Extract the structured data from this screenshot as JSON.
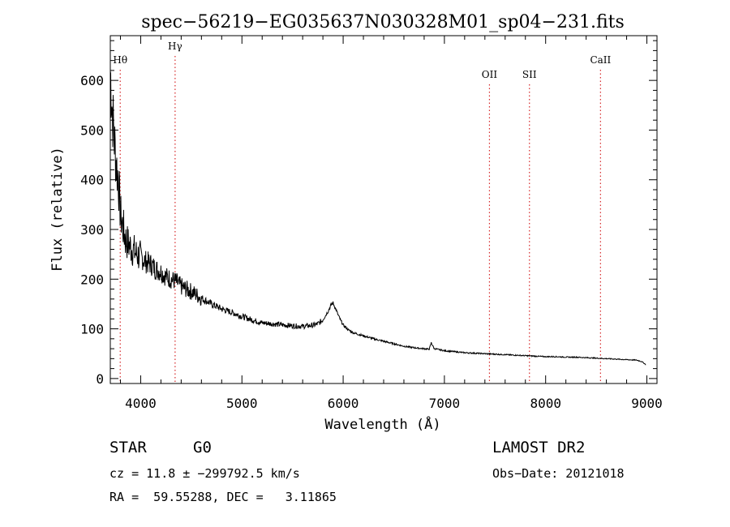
{
  "chart_data": {
    "type": "line",
    "title": "spec−56219−EG035637N030328M01_sp04−231.fits",
    "xlabel": "Wavelength (Å)",
    "ylabel": "Flux (relative)",
    "xlim": [
      3700,
      9100
    ],
    "ylim": [
      -10,
      690
    ],
    "xticks": [
      4000,
      5000,
      6000,
      7000,
      8000,
      9000
    ],
    "yticks": [
      0,
      100,
      200,
      300,
      400,
      500,
      600
    ],
    "grid": false,
    "line_color": "#000000",
    "marker_color": "#d62728",
    "series": [
      {
        "x": [
          3700,
          3720,
          3740,
          3760,
          3780,
          3800,
          3820,
          3850,
          3880,
          3920,
          3960,
          4000,
          4050,
          4100,
          4150,
          4200,
          4250,
          4300,
          4350,
          4400,
          4450,
          4500,
          4600,
          4700,
          4800,
          4900,
          5000,
          5100,
          5200,
          5300,
          5400,
          5500,
          5600,
          5700,
          5750,
          5800,
          5850,
          5880,
          5900,
          5920,
          5950,
          5980,
          6000,
          6050,
          6100,
          6200,
          6300,
          6400,
          6500,
          6600,
          6700,
          6800,
          6850,
          6870,
          6900,
          7000,
          7100,
          7200,
          7300,
          7400,
          7500,
          7600,
          7700,
          7800,
          7900,
          8000,
          8100,
          8200,
          8300,
          8400,
          8500,
          8600,
          8700,
          8800,
          8900,
          8950,
          8990
        ],
        "y": [
          620,
          540,
          480,
          430,
          400,
          330,
          310,
          280,
          270,
          260,
          250,
          245,
          235,
          230,
          220,
          215,
          205,
          200,
          195,
          185,
          180,
          175,
          162,
          150,
          140,
          133,
          125,
          118,
          112,
          110,
          108,
          106,
          105,
          107,
          110,
          118,
          135,
          148,
          152,
          143,
          128,
          115,
          108,
          98,
          92,
          86,
          80,
          75,
          70,
          65,
          62,
          60,
          59,
          72,
          60,
          56,
          54,
          52,
          51,
          50,
          49,
          48,
          47,
          46,
          45,
          44,
          44,
          43,
          43,
          42,
          41,
          40,
          39,
          38,
          37,
          34,
          28
        ]
      }
    ],
    "line_markers": [
      {
        "label": "Hθ",
        "x": 3798
      },
      {
        "label": "Hγ",
        "x": 4340
      },
      {
        "label": "OII",
        "x": 7445
      },
      {
        "label": "SII",
        "x": 7840
      },
      {
        "label": "CaII",
        "x": 8542
      }
    ]
  },
  "info": {
    "class_label": "STAR",
    "subclass": "G0",
    "survey": "LAMOST DR2",
    "cz_line": "cz = 11.8 ± −299792.5 km/s",
    "obs_date_line": "Obs−Date: 20121018",
    "coord_line": "RA =  59.55288, DEC =   3.11865"
  }
}
